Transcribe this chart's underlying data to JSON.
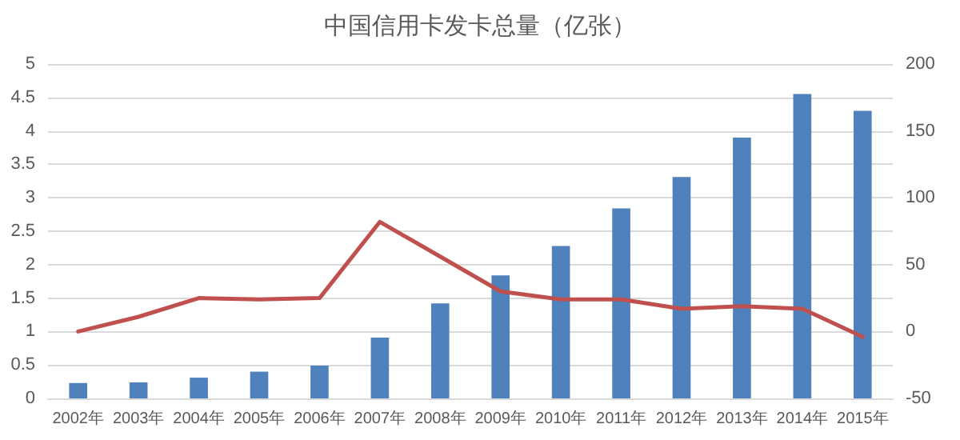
{
  "chart_data": {
    "type": "bar",
    "title": "中国信用卡发卡总量（亿张）",
    "categories": [
      "2002年",
      "2003年",
      "2004年",
      "2005年",
      "2006年",
      "2007年",
      "2008年",
      "2009年",
      "2010年",
      "2011年",
      "2012年",
      "2013年",
      "2014年",
      "2015年"
    ],
    "series": [
      {
        "color": "#4f81bd",
        "values": [
          0.23,
          0.24,
          0.31,
          0.4,
          0.49,
          0.91,
          1.42,
          1.84,
          2.28,
          2.84,
          3.31,
          3.9,
          4.55,
          4.3
        ]
      },
      {
        "type": "line",
        "axis": "y2",
        "color": "#c0504d",
        "values": [
          0,
          11,
          25,
          24,
          25,
          82,
          56,
          30,
          24,
          24,
          17,
          19,
          17,
          -4
        ]
      }
    ],
    "ylim": [
      0,
      5
    ],
    "yticks": [
      0,
      0.5,
      1,
      1.5,
      2,
      2.5,
      3,
      3.5,
      4,
      4.5,
      5
    ],
    "y2lim": [
      -50,
      200
    ],
    "y2ticks": [
      -50,
      0,
      50,
      100,
      150,
      200
    ],
    "grid": "y",
    "marker": "none",
    "line_style": "solid"
  }
}
